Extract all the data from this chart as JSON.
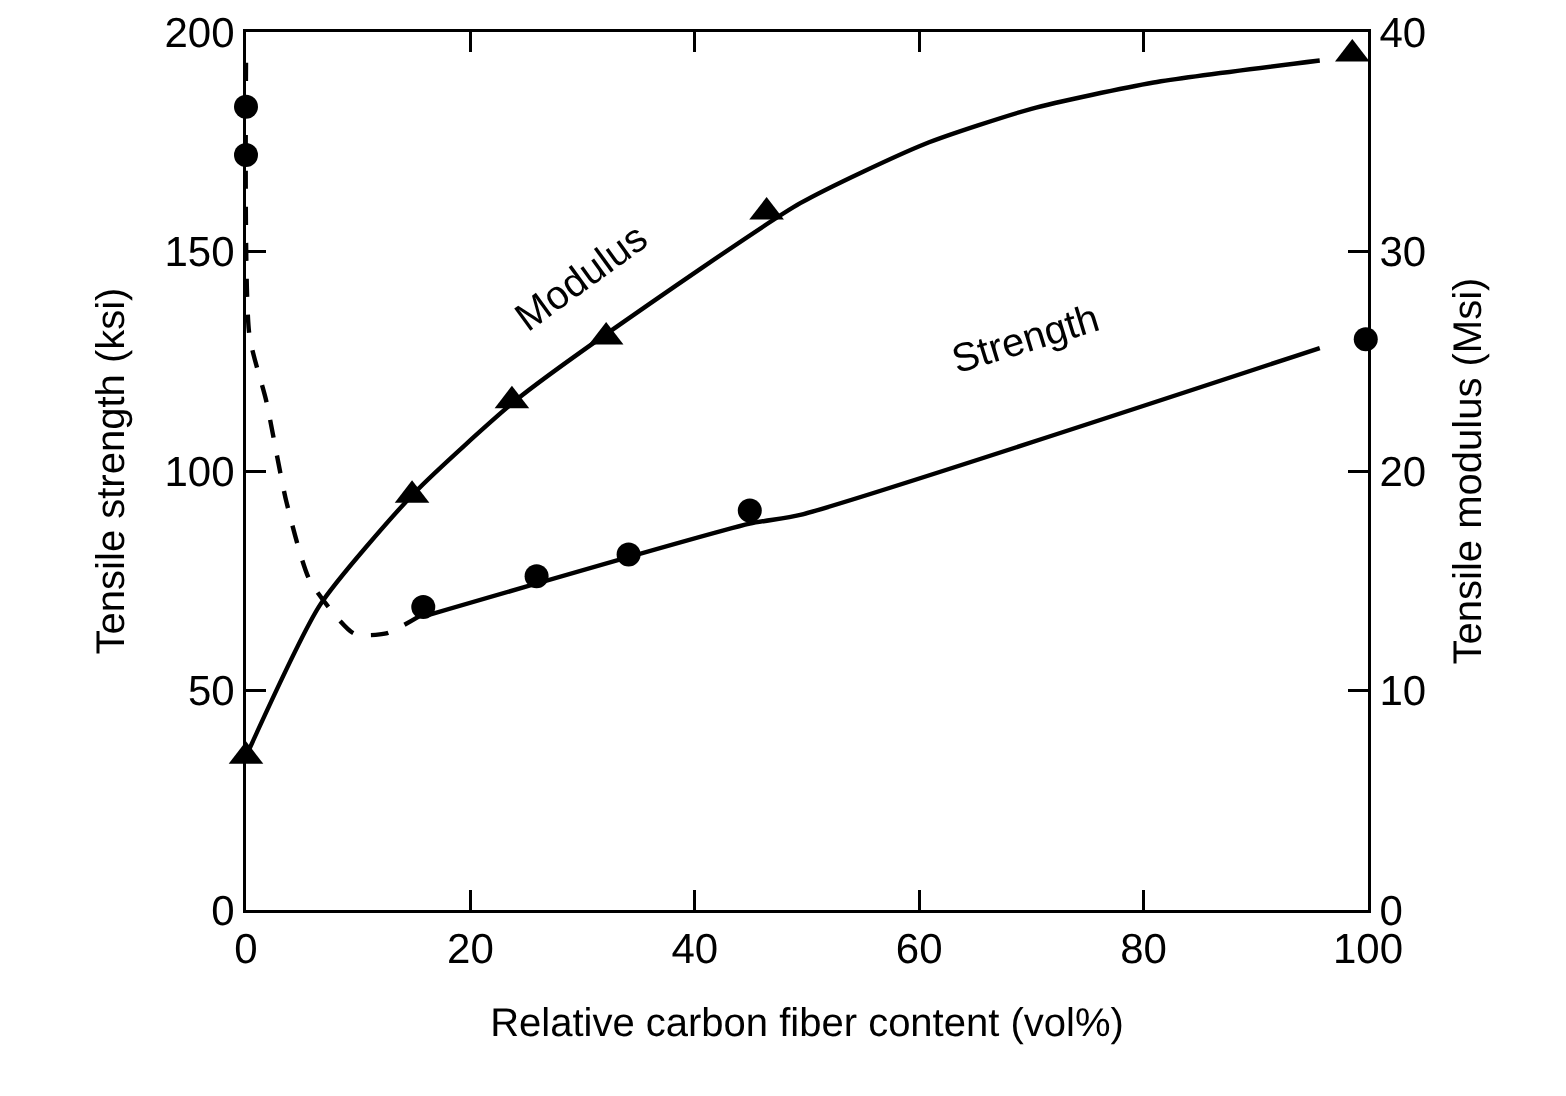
{
  "chart_data": {
    "type": "scatter",
    "xlabel": "Relative carbon fiber content (vol%)",
    "ylabel": "Tensile strength (ksi)",
    "y2label": "Tensile modulus (Msi)",
    "xlim": [
      0,
      100
    ],
    "xticks": [
      0,
      20,
      40,
      60,
      80,
      100
    ],
    "ylim": [
      0,
      200
    ],
    "yticks": [
      0,
      50,
      100,
      150,
      200
    ],
    "y2lim": [
      0,
      40
    ],
    "y2ticks": [
      0,
      10,
      20,
      30,
      40
    ],
    "grid": false,
    "series": [
      {
        "type": "line",
        "color": "#000000",
        "line_style": "dashed",
        "marker": "none",
        "x": [
          0,
          0.3,
          1.8,
          3.6,
          5.7,
          9.6,
          12.5,
          15.5
        ],
        "values": [
          193,
          131,
          116,
          93,
          75,
          63,
          63,
          67
        ]
      },
      {
        "type": "line",
        "color": "#000000",
        "line_style": "solid",
        "marker": "none",
        "x": [
          16,
          44.9,
          49.4,
          95.7
        ],
        "values": [
          67,
          88,
          90,
          128
        ]
      },
      {
        "type": "line",
        "color": "#000000",
        "line_style": "solid",
        "marker": "none",
        "axis": "y2",
        "x": [
          0,
          6.6,
          15,
          24,
          32,
          49.4,
          60.5,
          70,
          80.9,
          95.7
        ],
        "values": [
          7,
          13.9,
          19,
          23.2,
          26.2,
          32.2,
          34.9,
          36.5,
          37.7,
          38.7
        ]
      },
      {
        "color": "#000000",
        "marker": "circle",
        "x": [
          0,
          0,
          15.8,
          25.9,
          34.1,
          44.9,
          99.8
        ],
        "values": [
          183,
          172,
          69,
          76,
          81,
          91,
          130
        ]
      },
      {
        "color": "#000000",
        "marker": "triangle",
        "axis": "y2",
        "x": [
          0,
          14.8,
          23.7,
          32.1,
          46.4,
          98.6
        ],
        "values": [
          7,
          18.9,
          23.2,
          26.1,
          31.8,
          39
        ]
      }
    ],
    "annotations": [
      "Modulus",
      "Strength"
    ]
  }
}
